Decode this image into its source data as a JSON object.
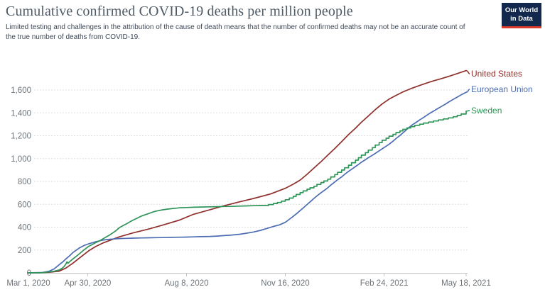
{
  "header": {
    "title": "Cumulative confirmed COVID-19 deaths per million people",
    "subtitle_line1": "Limited testing and challenges in the attribution of the cause of death means that the number of confirmed deaths may not be an accurate count of",
    "subtitle_line2": "the true number of deaths from COVID-19.",
    "logo": {
      "line1": "Our World",
      "line2": "in Data",
      "bg_color": "#12294d",
      "bar_color": "#dd3b2a"
    }
  },
  "chart_data": {
    "type": "line",
    "title": "Cumulative confirmed COVID-19 deaths per million people",
    "xlabel": "",
    "ylabel": "deaths per million people",
    "grid": "horizontal dashed",
    "legend_position": "right-end-labels",
    "ylim": [
      0,
      1600
    ],
    "y_ticks": [
      0,
      200,
      400,
      600,
      800,
      1000,
      1200,
      1400,
      1600
    ],
    "x_range_days": [
      0,
      443
    ],
    "x_ticks": [
      {
        "day": 0,
        "label": "Mar 1, 2020"
      },
      {
        "day": 60,
        "label": "Apr 30, 2020"
      },
      {
        "day": 160,
        "label": "Aug 8, 2020"
      },
      {
        "day": 260,
        "label": "Nov 16, 2020"
      },
      {
        "day": 360,
        "label": "Feb 24, 2021"
      },
      {
        "day": 443,
        "label": "May 18, 2021"
      }
    ],
    "colors": {
      "grid": "#dedede",
      "axis": "#c4c4c4",
      "tick_text": "#6d7378"
    },
    "series": [
      {
        "name": "United States",
        "color": "#8f302d",
        "legend_y": 16,
        "end_value": 1770,
        "points": [
          [
            0,
            0
          ],
          [
            14,
            1
          ],
          [
            21,
            5
          ],
          [
            31,
            14
          ],
          [
            38,
            42
          ],
          [
            45,
            85
          ],
          [
            52,
            132
          ],
          [
            61,
            193
          ],
          [
            68,
            230
          ],
          [
            75,
            260
          ],
          [
            92,
            315
          ],
          [
            106,
            350
          ],
          [
            122,
            384
          ],
          [
            136,
            418
          ],
          [
            153,
            462
          ],
          [
            167,
            512
          ],
          [
            184,
            553
          ],
          [
            198,
            587
          ],
          [
            214,
            622
          ],
          [
            228,
            651
          ],
          [
            245,
            690
          ],
          [
            260,
            740
          ],
          [
            268,
            776
          ],
          [
            275,
            812
          ],
          [
            282,
            862
          ],
          [
            289,
            918
          ],
          [
            296,
            972
          ],
          [
            303,
            1030
          ],
          [
            310,
            1088
          ],
          [
            317,
            1148
          ],
          [
            324,
            1210
          ],
          [
            331,
            1266
          ],
          [
            337,
            1318
          ],
          [
            344,
            1372
          ],
          [
            351,
            1428
          ],
          [
            358,
            1478
          ],
          [
            365,
            1520
          ],
          [
            372,
            1553
          ],
          [
            379,
            1583
          ],
          [
            387,
            1612
          ],
          [
            396,
            1640
          ],
          [
            403,
            1661
          ],
          [
            410,
            1680
          ],
          [
            418,
            1700
          ],
          [
            426,
            1721
          ],
          [
            434,
            1744
          ],
          [
            443,
            1770
          ]
        ]
      },
      {
        "name": "European Union",
        "color": "#4d6db3",
        "legend_y": 38,
        "end_value": 1580,
        "points": [
          [
            0,
            0
          ],
          [
            14,
            3
          ],
          [
            21,
            14
          ],
          [
            26,
            35
          ],
          [
            31,
            70
          ],
          [
            35,
            98
          ],
          [
            38,
            122
          ],
          [
            42,
            152
          ],
          [
            45,
            178
          ],
          [
            49,
            202
          ],
          [
            52,
            220
          ],
          [
            56,
            238
          ],
          [
            61,
            254
          ],
          [
            65,
            264
          ],
          [
            68,
            272
          ],
          [
            72,
            280
          ],
          [
            75,
            286
          ],
          [
            80,
            292
          ],
          [
            85,
            296
          ],
          [
            92,
            300
          ],
          [
            99,
            302
          ],
          [
            106,
            304
          ],
          [
            115,
            306
          ],
          [
            122,
            307
          ],
          [
            129,
            308
          ],
          [
            136,
            309
          ],
          [
            145,
            311
          ],
          [
            153,
            312
          ],
          [
            160,
            313
          ],
          [
            167,
            315
          ],
          [
            175,
            317
          ],
          [
            184,
            319
          ],
          [
            191,
            322
          ],
          [
            198,
            326
          ],
          [
            206,
            331
          ],
          [
            214,
            338
          ],
          [
            221,
            347
          ],
          [
            228,
            358
          ],
          [
            235,
            372
          ],
          [
            242,
            390
          ],
          [
            248,
            406
          ],
          [
            254,
            420
          ],
          [
            260,
            442
          ],
          [
            264,
            468
          ],
          [
            268,
            495
          ],
          [
            272,
            522
          ],
          [
            275,
            545
          ],
          [
            279,
            575
          ],
          [
            282,
            598
          ],
          [
            286,
            628
          ],
          [
            289,
            652
          ],
          [
            293,
            680
          ],
          [
            296,
            700
          ],
          [
            300,
            725
          ],
          [
            303,
            745
          ],
          [
            306,
            768
          ],
          [
            310,
            795
          ],
          [
            313,
            815
          ],
          [
            317,
            840
          ],
          [
            320,
            862
          ],
          [
            324,
            888
          ],
          [
            327,
            906
          ],
          [
            331,
            930
          ],
          [
            334,
            948
          ],
          [
            337,
            968
          ],
          [
            341,
            990
          ],
          [
            344,
            1008
          ],
          [
            348,
            1028
          ],
          [
            351,
            1045
          ],
          [
            355,
            1068
          ],
          [
            358,
            1085
          ],
          [
            362,
            1108
          ],
          [
            365,
            1125
          ],
          [
            369,
            1152
          ],
          [
            372,
            1175
          ],
          [
            376,
            1202
          ],
          [
            379,
            1225
          ],
          [
            382,
            1248
          ],
          [
            386,
            1278
          ],
          [
            389,
            1298
          ],
          [
            392,
            1315
          ],
          [
            396,
            1338
          ],
          [
            400,
            1360
          ],
          [
            404,
            1384
          ],
          [
            408,
            1405
          ],
          [
            410,
            1415
          ],
          [
            414,
            1436
          ],
          [
            418,
            1456
          ],
          [
            422,
            1476
          ],
          [
            426,
            1498
          ],
          [
            430,
            1518
          ],
          [
            434,
            1538
          ],
          [
            438,
            1558
          ],
          [
            443,
            1580
          ]
        ]
      },
      {
        "name": "Sweden",
        "color": "#2e9558",
        "legend_y": 68,
        "end_value": 1415,
        "points": [
          [
            0,
            0
          ],
          [
            10,
            0
          ],
          [
            14,
            2
          ],
          [
            21,
            8
          ],
          [
            26,
            14
          ],
          [
            31,
            25
          ],
          [
            34,
            40
          ],
          [
            36,
            55
          ],
          [
            38,
            78
          ],
          [
            39,
            97
          ],
          [
            40,
            83
          ],
          [
            42,
            100
          ],
          [
            45,
            122
          ],
          [
            49,
            148
          ],
          [
            52,
            170
          ],
          [
            56,
            200
          ],
          [
            61,
            232
          ],
          [
            65,
            250
          ],
          [
            68,
            264
          ],
          [
            72,
            280
          ],
          [
            75,
            296
          ],
          [
            82,
            330
          ],
          [
            88,
            365
          ],
          [
            92,
            395
          ],
          [
            96,
            415
          ],
          [
            99,
            428
          ],
          [
            103,
            448
          ],
          [
            106,
            462
          ],
          [
            110,
            478
          ],
          [
            113,
            492
          ],
          [
            118,
            508
          ],
          [
            122,
            520
          ],
          [
            127,
            535
          ],
          [
            131,
            544
          ],
          [
            136,
            552
          ],
          [
            141,
            558
          ],
          [
            145,
            562
          ],
          [
            150,
            566
          ],
          [
            153,
            569
          ],
          [
            160,
            572
          ],
          [
            167,
            574
          ],
          [
            175,
            576
          ],
          [
            184,
            578
          ],
          [
            191,
            579
          ],
          [
            198,
            581
          ],
          [
            206,
            582
          ],
          [
            214,
            584
          ],
          [
            221,
            586
          ],
          [
            228,
            588
          ],
          [
            233,
            589
          ],
          [
            238,
            590
          ],
          [
            243,
            590
          ],
          [
            243,
            598
          ],
          [
            248,
            598
          ],
          [
            248,
            607
          ],
          [
            252,
            607
          ],
          [
            252,
            616
          ],
          [
            256,
            616
          ],
          [
            256,
            627
          ],
          [
            260,
            627
          ],
          [
            260,
            640
          ],
          [
            264,
            640
          ],
          [
            264,
            654
          ],
          [
            268,
            654
          ],
          [
            268,
            670
          ],
          [
            271,
            670
          ],
          [
            271,
            686
          ],
          [
            275,
            686
          ],
          [
            275,
            702
          ],
          [
            278,
            702
          ],
          [
            278,
            717
          ],
          [
            282,
            717
          ],
          [
            282,
            732
          ],
          [
            285,
            732
          ],
          [
            285,
            744
          ],
          [
            289,
            744
          ],
          [
            289,
            758
          ],
          [
            292,
            758
          ],
          [
            292,
            774
          ],
          [
            296,
            774
          ],
          [
            296,
            790
          ],
          [
            299,
            790
          ],
          [
            299,
            804
          ],
          [
            303,
            804
          ],
          [
            303,
            820
          ],
          [
            306,
            820
          ],
          [
            306,
            840
          ],
          [
            310,
            840
          ],
          [
            310,
            860
          ],
          [
            313,
            860
          ],
          [
            313,
            880
          ],
          [
            317,
            880
          ],
          [
            317,
            900
          ],
          [
            320,
            900
          ],
          [
            320,
            920
          ],
          [
            324,
            920
          ],
          [
            324,
            942
          ],
          [
            327,
            942
          ],
          [
            327,
            964
          ],
          [
            331,
            964
          ],
          [
            331,
            986
          ],
          [
            334,
            986
          ],
          [
            334,
            1008
          ],
          [
            337,
            1008
          ],
          [
            337,
            1030
          ],
          [
            341,
            1030
          ],
          [
            341,
            1052
          ],
          [
            344,
            1052
          ],
          [
            344,
            1074
          ],
          [
            348,
            1074
          ],
          [
            348,
            1096
          ],
          [
            351,
            1096
          ],
          [
            351,
            1118
          ],
          [
            355,
            1118
          ],
          [
            355,
            1140
          ],
          [
            358,
            1140
          ],
          [
            358,
            1160
          ],
          [
            362,
            1160
          ],
          [
            362,
            1178
          ],
          [
            365,
            1178
          ],
          [
            365,
            1196
          ],
          [
            369,
            1196
          ],
          [
            369,
            1212
          ],
          [
            372,
            1212
          ],
          [
            372,
            1228
          ],
          [
            376,
            1228
          ],
          [
            376,
            1242
          ],
          [
            379,
            1242
          ],
          [
            379,
            1256
          ],
          [
            383,
            1256
          ],
          [
            383,
            1268
          ],
          [
            387,
            1268
          ],
          [
            387,
            1280
          ],
          [
            391,
            1280
          ],
          [
            391,
            1291
          ],
          [
            396,
            1291
          ],
          [
            396,
            1301
          ],
          [
            400,
            1301
          ],
          [
            400,
            1311
          ],
          [
            405,
            1311
          ],
          [
            405,
            1320
          ],
          [
            410,
            1320
          ],
          [
            410,
            1329
          ],
          [
            415,
            1329
          ],
          [
            415,
            1338
          ],
          [
            420,
            1338
          ],
          [
            420,
            1347
          ],
          [
            425,
            1347
          ],
          [
            425,
            1356
          ],
          [
            430,
            1356
          ],
          [
            430,
            1366
          ],
          [
            434,
            1366
          ],
          [
            434,
            1378
          ],
          [
            438,
            1378
          ],
          [
            438,
            1390
          ],
          [
            443,
            1390
          ],
          [
            443,
            1415
          ]
        ]
      }
    ]
  }
}
